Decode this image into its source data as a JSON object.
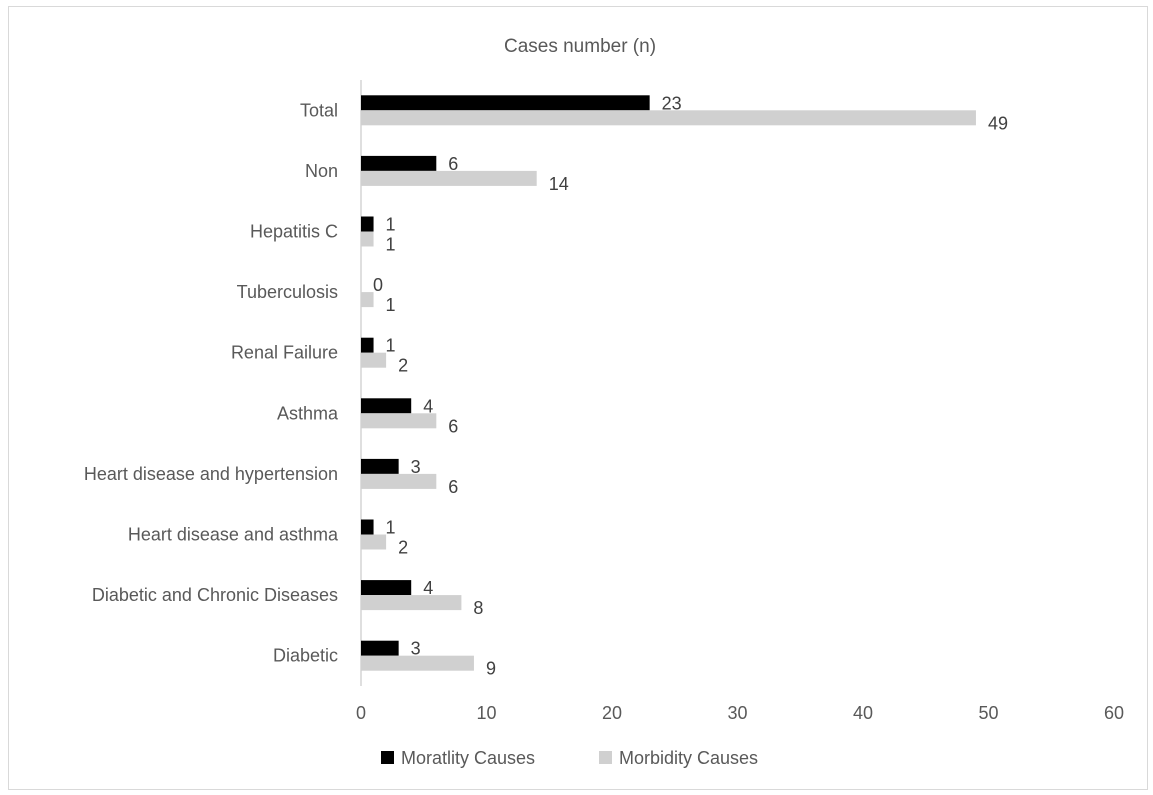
{
  "chart_data": {
    "type": "bar",
    "orientation": "horizontal",
    "title": "Cases number (n)",
    "categories": [
      "Diabetic",
      "Diabetic and Chronic Diseases",
      "Heart disease and asthma",
      "Heart disease and hypertension",
      "Asthma",
      "Renal Failure",
      "Tuberculosis",
      "Hepatitis C",
      "Non",
      "Total"
    ],
    "series": [
      {
        "name": "Moratlity Causes",
        "color": "#000000",
        "values": [
          3,
          4,
          1,
          3,
          4,
          1,
          0,
          1,
          6,
          23
        ]
      },
      {
        "name": "Morbidity  Causes",
        "color": "#d0d0d0",
        "values": [
          9,
          8,
          2,
          6,
          6,
          2,
          1,
          1,
          14,
          49
        ]
      }
    ],
    "xlim": [
      0,
      60
    ],
    "xticks": [
      "0",
      "10",
      "20",
      "30",
      "40",
      "50",
      "60"
    ],
    "grid": false,
    "legend": "bottom"
  }
}
